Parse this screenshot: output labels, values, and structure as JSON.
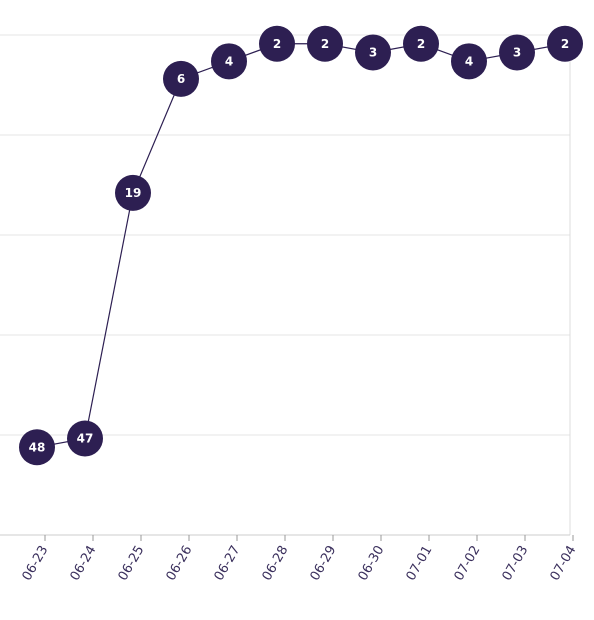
{
  "chart_data": {
    "type": "line",
    "x": [
      "06-23",
      "06-24",
      "06-25",
      "06-26",
      "06-27",
      "06-28",
      "06-29",
      "06-30",
      "07-01",
      "07-02",
      "07-03",
      "07-04"
    ],
    "values": [
      48,
      47,
      19,
      6,
      4,
      2,
      2,
      3,
      2,
      4,
      3,
      2
    ],
    "color": "#2d1f52",
    "inverted_y": true,
    "ylim": [
      1,
      58
    ],
    "yticks": [
      1,
      12.4,
      23.8,
      35.2,
      46.6,
      58
    ],
    "grid": true
  }
}
